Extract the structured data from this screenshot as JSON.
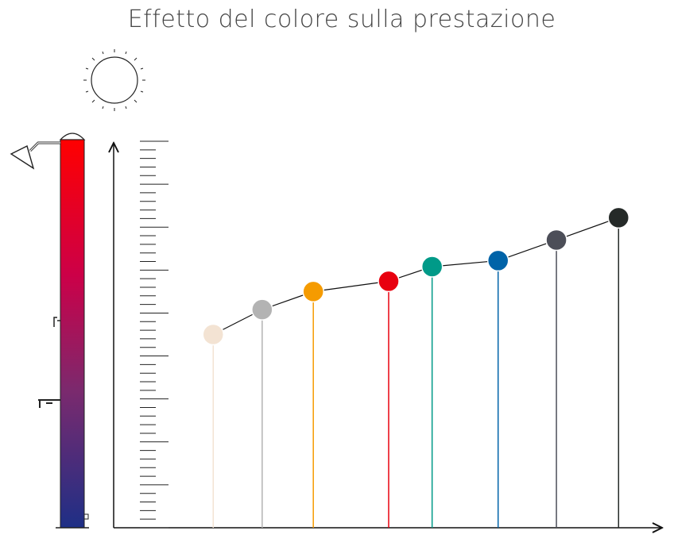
{
  "chart_data": {
    "type": "lollipop",
    "title": "Effetto del colore sulla prestazione",
    "x": [
      18.1,
      27.0,
      36.3,
      50.0,
      57.9,
      69.9,
      80.5,
      91.8
    ],
    "values": [
      22.5,
      25.4,
      27.5,
      28.7,
      30.4,
      31.1,
      33.5,
      36.1
    ],
    "colors": [
      "#f3e3d3",
      "#b3b3b3",
      "#f59b00",
      "#e8000f",
      "#009a88",
      "#0063a8",
      "#4c4e58",
      "#252a28"
    ],
    "xlim": [
      0,
      100
    ],
    "ylim": [
      0,
      45
    ],
    "yticks": [
      0,
      1,
      2,
      3,
      4,
      5,
      6,
      7,
      8,
      9,
      10,
      11,
      12,
      13,
      14,
      15,
      16,
      17,
      18,
      19,
      20,
      21,
      22,
      23,
      24,
      25,
      26,
      27,
      28,
      29,
      30,
      31,
      32,
      33,
      34,
      35,
      36,
      37,
      38,
      39,
      40,
      41,
      42,
      43,
      44,
      45
    ]
  }
}
